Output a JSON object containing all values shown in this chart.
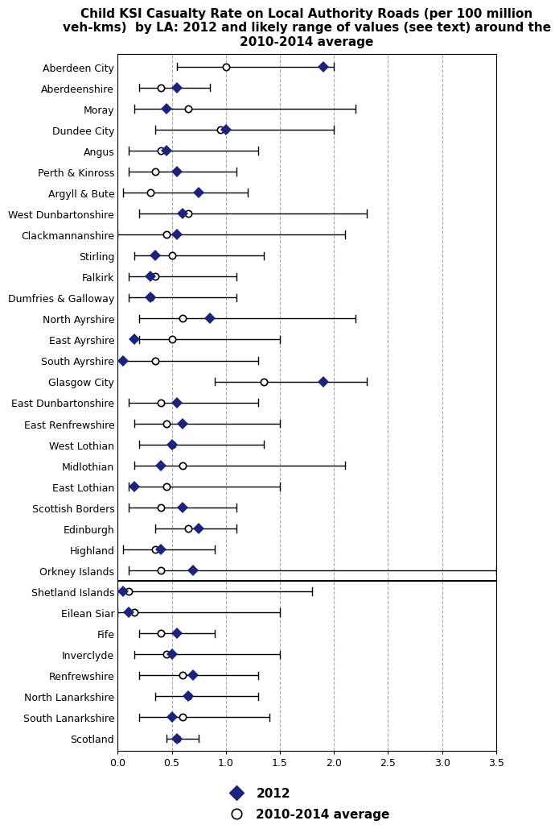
{
  "title": "Child KSI Casualty Rate on Local Authority Roads (per 100 million\nveh-kms)  by LA: 2012 and likely range of values (see text) around the\n2010-2014 average",
  "categories": [
    "Aberdeen City",
    "Aberdeenshire",
    "Moray",
    "Dundee City",
    "Angus",
    "Perth & Kinross",
    "Argyll & Bute",
    "West Dunbartonshire",
    "Clackmannanshire",
    "Stirling",
    "Falkirk",
    "Dumfries & Galloway",
    "North Ayrshire",
    "East Ayrshire",
    "South Ayrshire",
    "Glasgow City",
    "East Dunbartonshire",
    "East Renfrewshire",
    "West Lothian",
    "Midlothian",
    "East Lothian",
    "Scottish Borders",
    "Edinburgh",
    "Highland",
    "Orkney Islands",
    "Shetland Islands",
    "Eilean Siar",
    "Fife",
    "Inverclyde",
    "Renfrewshire",
    "North Lanarkshire",
    "South Lanarkshire",
    "Scotland"
  ],
  "val_2012": [
    1.9,
    0.55,
    0.45,
    1.0,
    0.45,
    0.55,
    0.75,
    0.6,
    0.55,
    0.35,
    0.3,
    0.3,
    0.85,
    0.15,
    0.05,
    1.9,
    0.55,
    0.6,
    0.5,
    0.4,
    0.15,
    0.6,
    0.75,
    0.4,
    0.7,
    0.05,
    0.1,
    0.55,
    0.5,
    0.7,
    0.65,
    0.5,
    0.55
  ],
  "val_avg": [
    1.0,
    0.4,
    0.65,
    0.95,
    0.4,
    0.35,
    0.3,
    0.65,
    0.45,
    0.5,
    0.35,
    0.3,
    0.6,
    0.5,
    0.35,
    1.35,
    0.4,
    0.45,
    0.5,
    0.6,
    0.45,
    0.4,
    0.65,
    0.35,
    0.4,
    0.1,
    0.15,
    0.4,
    0.45,
    0.6,
    0.65,
    0.6,
    0.55
  ],
  "ci_low": [
    0.55,
    0.2,
    0.15,
    0.35,
    0.1,
    0.1,
    0.05,
    0.2,
    0.0,
    0.15,
    0.1,
    0.1,
    0.2,
    0.2,
    0.05,
    0.9,
    0.1,
    0.15,
    0.2,
    0.15,
    0.1,
    0.1,
    0.35,
    0.05,
    0.1,
    0.0,
    0.0,
    0.2,
    0.15,
    0.2,
    0.35,
    0.2,
    0.45
  ],
  "ci_high": [
    2.0,
    0.85,
    2.2,
    2.0,
    1.3,
    1.1,
    1.2,
    2.3,
    2.1,
    1.35,
    1.1,
    1.1,
    2.2,
    1.5,
    1.3,
    2.3,
    1.3,
    1.5,
    1.35,
    2.1,
    1.5,
    1.1,
    1.1,
    0.9,
    3.5,
    1.8,
    1.5,
    0.9,
    1.5,
    1.3,
    1.3,
    1.4,
    0.75
  ],
  "diamond_color": "#1a237e",
  "circle_color": "white",
  "circle_edge_color": "black",
  "line_color": "black",
  "dashed_line_color": "#aaaaaa",
  "background_color": "white",
  "xlim": [
    0.0,
    3.5
  ],
  "xticks": [
    0.0,
    0.5,
    1.0,
    1.5,
    2.0,
    2.5,
    3.0,
    3.5
  ],
  "vlines": [
    0.5,
    1.0,
    1.5,
    2.0,
    2.5,
    3.0
  ],
  "orkney_separator_after": "Orkney Islands",
  "legend_2012_label": "2012",
  "legend_avg_label": "2010-2014 average",
  "title_fontsize": 11,
  "tick_fontsize": 9,
  "label_fontsize": 9
}
